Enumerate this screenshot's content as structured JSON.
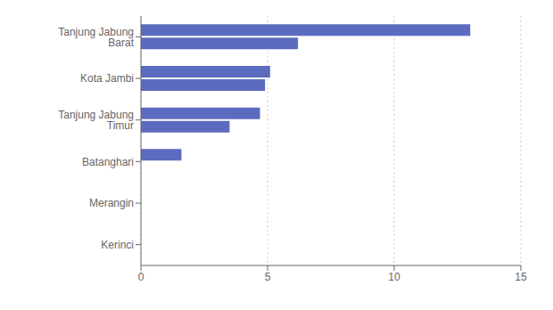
{
  "chart_data": {
    "type": "bar",
    "orientation": "horizontal",
    "categories": [
      "Tanjung Jabung Barat",
      "Kota Jambi",
      "Tanjung Jabung Timur",
      "Batanghari",
      "Merangin",
      "Kerinci"
    ],
    "series": [
      {
        "color": "#5b6bbf",
        "values": [
          13.0,
          5.1,
          4.7,
          1.6,
          0,
          0
        ]
      },
      {
        "color": "#5b6bbf",
        "values": [
          6.2,
          4.9,
          3.5,
          0,
          0,
          0
        ]
      }
    ],
    "xlim": [
      0,
      15
    ],
    "xticks": [
      0,
      5,
      10,
      15
    ],
    "grid": true
  }
}
